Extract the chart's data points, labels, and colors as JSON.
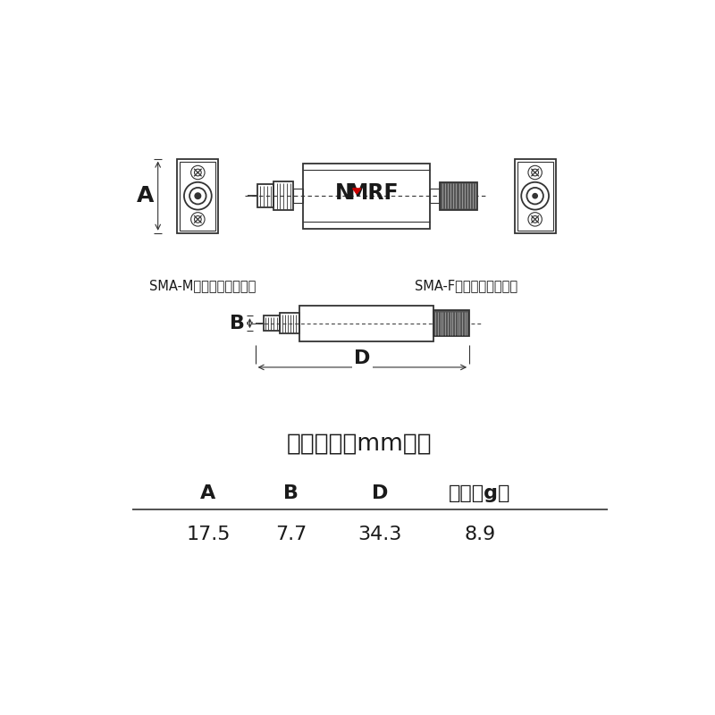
{
  "bg_color": "#ffffff",
  "text_color": "#1a1a1a",
  "line_color": "#333333",
  "red_color": "#cc0000",
  "title_dimensions": "外观尺寸（mm）：",
  "col_headers": [
    "A",
    "B",
    "D",
    "重量（g）"
  ],
  "col_values": [
    "17.5",
    "7.7",
    "34.3",
    "8.9"
  ],
  "sma_m_label": "SMA-M（公，内螺内针）",
  "sma_f_label": "SMA-F（母，外螺内孔）",
  "dim_A": "A",
  "dim_B": "B",
  "dim_D": "D"
}
